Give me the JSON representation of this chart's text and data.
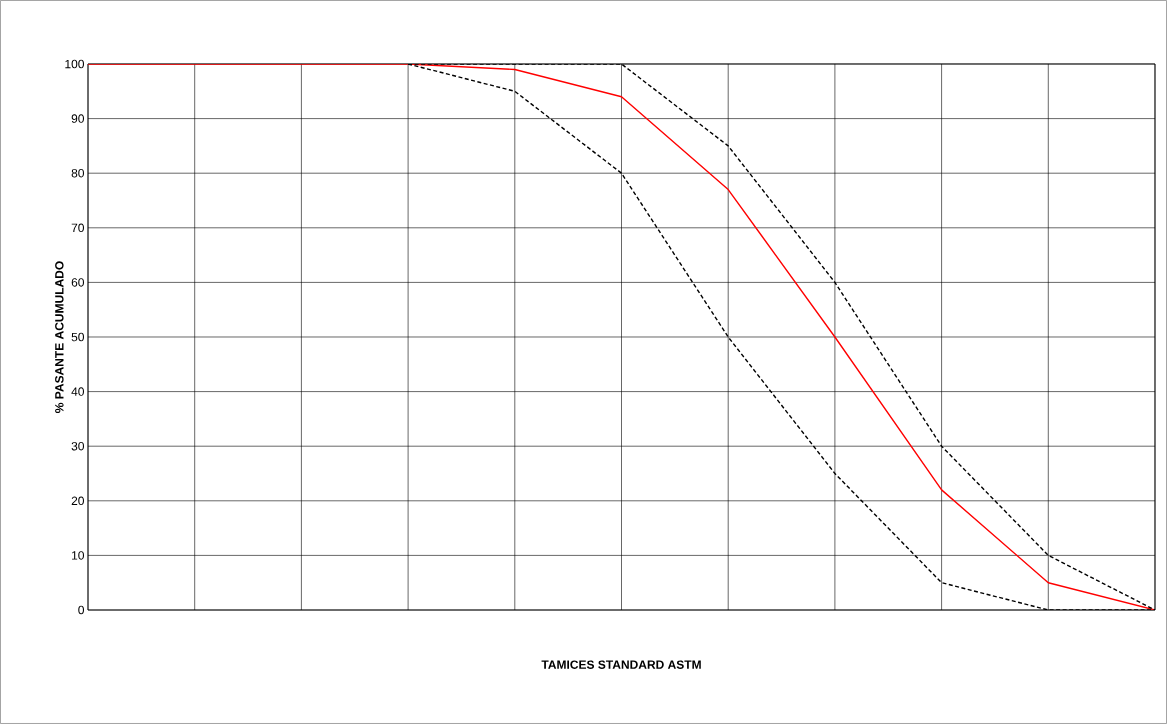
{
  "chart_data": {
    "type": "line",
    "xlabel": "TAMICES STANDARD ASTM",
    "ylabel": "% PASANTE ACUMULADO",
    "categories": [
      null,
      null,
      null,
      null,
      null,
      null,
      null,
      null,
      null,
      null,
      null
    ],
    "series": [
      {
        "color": "#ff0000",
        "line_style": "solid",
        "values": [
          100,
          100,
          100,
          100,
          99,
          94,
          77,
          50,
          22,
          5,
          0
        ]
      },
      {
        "color": "#000000",
        "line_style": "dashed",
        "values": [
          null,
          null,
          null,
          100,
          100,
          100,
          85,
          60,
          30,
          10,
          0
        ]
      },
      {
        "color": "#000000",
        "line_style": "dashed",
        "values": [
          null,
          null,
          null,
          100,
          95,
          80,
          50,
          25,
          5,
          0,
          0
        ]
      }
    ],
    "ylim": [
      0,
      100
    ],
    "yticks": [
      0,
      10,
      20,
      30,
      40,
      50,
      60,
      70,
      80,
      90,
      100
    ],
    "grid": true,
    "marker": "none"
  }
}
